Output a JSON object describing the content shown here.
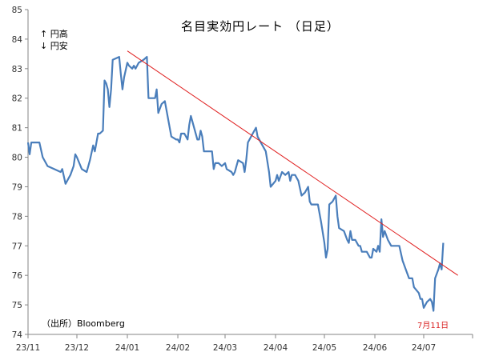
{
  "chart_data": {
    "type": "line",
    "title": "名目実効円レート （日足）",
    "legend_notes": [
      "↑ 円高",
      "↓ 円安"
    ],
    "source": "（出所）Bloomberg",
    "annotation": "7月11日",
    "ylim": [
      74,
      85
    ],
    "y_ticks": [
      "74",
      "75",
      "76",
      "77",
      "78",
      "79",
      "80",
      "81",
      "82",
      "83",
      "84",
      "85"
    ],
    "x_ticks": [
      "23/11",
      "23/12",
      "24/01",
      "24/02",
      "24/03",
      "24/04",
      "24/05",
      "24/06",
      "24/07"
    ],
    "xlim": [
      "2023-11-01",
      "2024-07-31"
    ],
    "series": [
      {
        "color": "#4a7ebb",
        "points": [
          [
            "2023-11-01",
            80.5
          ],
          [
            "2023-11-02",
            80.1
          ],
          [
            "2023-11-03",
            80.5
          ],
          [
            "2023-11-08",
            80.5
          ],
          [
            "2023-11-10",
            80.0
          ],
          [
            "2023-11-13",
            79.7
          ],
          [
            "2023-11-17",
            79.6
          ],
          [
            "2023-11-21",
            79.5
          ],
          [
            "2023-11-22",
            79.6
          ],
          [
            "2023-11-24",
            79.1
          ],
          [
            "2023-11-27",
            79.4
          ],
          [
            "2023-11-29",
            79.7
          ],
          [
            "2023-11-30",
            80.1
          ],
          [
            "2023-12-01",
            80.0
          ],
          [
            "2023-12-04",
            79.6
          ],
          [
            "2023-12-07",
            79.5
          ],
          [
            "2023-12-09",
            79.9
          ],
          [
            "2023-12-11",
            80.4
          ],
          [
            "2023-12-12",
            80.2
          ],
          [
            "2023-12-14",
            80.8
          ],
          [
            "2023-12-15",
            80.8
          ],
          [
            "2023-12-17",
            80.9
          ],
          [
            "2023-12-18",
            82.6
          ],
          [
            "2023-12-19",
            82.5
          ],
          [
            "2023-12-20",
            82.3
          ],
          [
            "2023-12-21",
            81.7
          ],
          [
            "2023-12-22",
            82.3
          ],
          [
            "2023-12-23",
            83.3
          ],
          [
            "2023-12-27",
            83.4
          ],
          [
            "2023-12-28",
            82.8
          ],
          [
            "2023-12-29",
            82.3
          ],
          [
            "2023-12-30",
            82.7
          ],
          [
            "2024-01-01",
            83.2
          ],
          [
            "2024-01-02",
            83.1
          ],
          [
            "2024-01-04",
            83.0
          ],
          [
            "2024-01-05",
            83.1
          ],
          [
            "2024-01-06",
            83.0
          ],
          [
            "2024-01-08",
            83.2
          ],
          [
            "2024-01-11",
            83.3
          ],
          [
            "2024-01-13",
            83.4
          ],
          [
            "2024-01-14",
            82.0
          ],
          [
            "2024-01-18",
            82.0
          ],
          [
            "2024-01-19",
            82.3
          ],
          [
            "2024-01-20",
            81.5
          ],
          [
            "2024-01-22",
            81.8
          ],
          [
            "2024-01-24",
            81.9
          ],
          [
            "2024-01-28",
            80.7
          ],
          [
            "2024-01-31",
            80.6
          ],
          [
            "2024-02-01",
            80.6
          ],
          [
            "2024-02-02",
            80.5
          ],
          [
            "2024-02-03",
            80.8
          ],
          [
            "2024-02-05",
            80.8
          ],
          [
            "2024-02-07",
            80.6
          ],
          [
            "2024-02-08",
            81.1
          ],
          [
            "2024-02-09",
            81.4
          ],
          [
            "2024-02-13",
            80.6
          ],
          [
            "2024-02-14",
            80.6
          ],
          [
            "2024-02-15",
            80.9
          ],
          [
            "2024-02-16",
            80.7
          ],
          [
            "2024-02-17",
            80.2
          ],
          [
            "2024-02-20",
            80.2
          ],
          [
            "2024-02-22",
            80.2
          ],
          [
            "2024-02-23",
            79.6
          ],
          [
            "2024-02-24",
            79.8
          ],
          [
            "2024-02-26",
            79.8
          ],
          [
            "2024-02-28",
            79.7
          ],
          [
            "2024-03-01",
            79.8
          ],
          [
            "2024-03-02",
            79.6
          ],
          [
            "2024-03-05",
            79.5
          ],
          [
            "2024-03-06",
            79.4
          ],
          [
            "2024-03-07",
            79.5
          ],
          [
            "2024-03-09",
            79.9
          ],
          [
            "2024-03-12",
            79.8
          ],
          [
            "2024-03-13",
            79.5
          ],
          [
            "2024-03-14",
            79.9
          ],
          [
            "2024-03-15",
            80.5
          ],
          [
            "2024-03-18",
            80.8
          ],
          [
            "2024-03-20",
            81.0
          ],
          [
            "2024-03-21",
            80.7
          ],
          [
            "2024-03-24",
            80.4
          ],
          [
            "2024-03-26",
            80.2
          ],
          [
            "2024-03-28",
            79.5
          ],
          [
            "2024-03-29",
            79.0
          ],
          [
            "2024-04-01",
            79.2
          ],
          [
            "2024-04-02",
            79.4
          ],
          [
            "2024-04-03",
            79.2
          ],
          [
            "2024-04-05",
            79.5
          ],
          [
            "2024-04-07",
            79.4
          ],
          [
            "2024-04-09",
            79.5
          ],
          [
            "2024-04-10",
            79.2
          ],
          [
            "2024-04-11",
            79.4
          ],
          [
            "2024-04-13",
            79.4
          ],
          [
            "2024-04-15",
            79.2
          ],
          [
            "2024-04-17",
            78.7
          ],
          [
            "2024-04-19",
            78.8
          ],
          [
            "2024-04-21",
            79.0
          ],
          [
            "2024-04-22",
            78.5
          ],
          [
            "2024-04-23",
            78.4
          ],
          [
            "2024-04-25",
            78.4
          ],
          [
            "2024-04-27",
            78.4
          ],
          [
            "2024-04-29",
            77.8
          ],
          [
            "2024-05-01",
            77.1
          ],
          [
            "2024-05-02",
            76.6
          ],
          [
            "2024-05-03",
            76.9
          ],
          [
            "2024-05-04",
            78.4
          ],
          [
            "2024-05-06",
            78.5
          ],
          [
            "2024-05-08",
            78.7
          ],
          [
            "2024-05-09",
            78.0
          ],
          [
            "2024-05-10",
            77.6
          ],
          [
            "2024-05-13",
            77.5
          ],
          [
            "2024-05-15",
            77.2
          ],
          [
            "2024-05-16",
            77.1
          ],
          [
            "2024-05-17",
            77.5
          ],
          [
            "2024-05-18",
            77.2
          ],
          [
            "2024-05-20",
            77.2
          ],
          [
            "2024-05-22",
            77.0
          ],
          [
            "2024-05-23",
            77.0
          ],
          [
            "2024-05-24",
            76.8
          ],
          [
            "2024-05-27",
            76.8
          ],
          [
            "2024-05-29",
            76.6
          ],
          [
            "2024-05-30",
            76.6
          ],
          [
            "2024-05-31",
            76.9
          ],
          [
            "2024-06-02",
            76.8
          ],
          [
            "2024-06-03",
            77.0
          ],
          [
            "2024-06-04",
            76.8
          ],
          [
            "2024-06-05",
            77.9
          ],
          [
            "2024-06-06",
            77.3
          ],
          [
            "2024-06-07",
            77.5
          ],
          [
            "2024-06-09",
            77.2
          ],
          [
            "2024-06-11",
            77.0
          ],
          [
            "2024-06-14",
            77.0
          ],
          [
            "2024-06-16",
            77.0
          ],
          [
            "2024-06-18",
            76.5
          ],
          [
            "2024-06-20",
            76.2
          ],
          [
            "2024-06-22",
            75.9
          ],
          [
            "2024-06-24",
            75.9
          ],
          [
            "2024-06-25",
            75.6
          ],
          [
            "2024-06-28",
            75.4
          ],
          [
            "2024-06-29",
            75.2
          ],
          [
            "2024-06-30",
            75.2
          ],
          [
            "2024-07-01",
            74.9
          ],
          [
            "2024-07-03",
            75.1
          ],
          [
            "2024-07-05",
            75.2
          ],
          [
            "2024-07-06",
            75.1
          ],
          [
            "2024-07-07",
            74.8
          ],
          [
            "2024-07-08",
            75.9
          ],
          [
            "2024-07-10",
            76.2
          ],
          [
            "2024-07-11",
            76.4
          ],
          [
            "2024-07-12",
            76.2
          ],
          [
            "2024-07-13",
            77.1
          ]
        ]
      }
    ],
    "trendline": {
      "color": "#e02020",
      "from": [
        "2024-01-01",
        83.6
      ],
      "to": [
        "2024-07-22",
        76.0
      ]
    },
    "grid": false
  }
}
